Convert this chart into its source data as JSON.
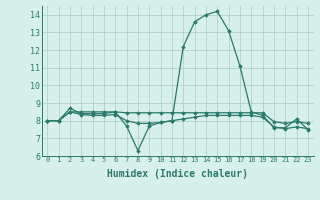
{
  "xlabel": "Humidex (Indice chaleur)",
  "x_values": [
    0,
    1,
    2,
    3,
    4,
    5,
    6,
    7,
    8,
    9,
    10,
    11,
    12,
    13,
    14,
    15,
    16,
    17,
    18,
    19,
    20,
    21,
    22,
    23
  ],
  "line1_y": [
    8.0,
    8.0,
    8.7,
    8.4,
    8.4,
    8.4,
    8.5,
    7.7,
    6.3,
    7.7,
    7.9,
    8.0,
    12.2,
    13.6,
    14.0,
    14.2,
    13.1,
    11.1,
    8.5,
    8.3,
    7.6,
    7.6,
    8.1,
    7.5
  ],
  "line2_y": [
    8.0,
    8.0,
    8.5,
    8.35,
    8.3,
    8.3,
    8.35,
    8.0,
    7.85,
    7.85,
    7.9,
    8.0,
    8.1,
    8.2,
    8.3,
    8.3,
    8.3,
    8.3,
    8.3,
    8.2,
    7.65,
    7.55,
    7.65,
    7.55
  ],
  "line3_y": [
    8.0,
    8.0,
    8.5,
    8.5,
    8.5,
    8.5,
    8.5,
    8.45,
    8.45,
    8.45,
    8.45,
    8.45,
    8.45,
    8.45,
    8.45,
    8.45,
    8.45,
    8.45,
    8.45,
    8.45,
    7.95,
    7.85,
    7.95,
    7.85
  ],
  "line_color": "#2a7a6a",
  "bg_color": "#d8f0ec",
  "grid_color": "#aaccc8",
  "ylim": [
    6,
    14.5
  ],
  "yticks": [
    6,
    7,
    8,
    9,
    10,
    11,
    12,
    13,
    14
  ],
  "xtick_labels": [
    "0",
    "1",
    "2",
    "3",
    "4",
    "5",
    "6",
    "7",
    "8",
    "9",
    "10",
    "11",
    "12",
    "13",
    "14",
    "15",
    "16",
    "17",
    "18",
    "19",
    "20",
    "21",
    "22",
    "23"
  ],
  "marker": "D",
  "markersize": 1.8,
  "linewidth": 0.9
}
